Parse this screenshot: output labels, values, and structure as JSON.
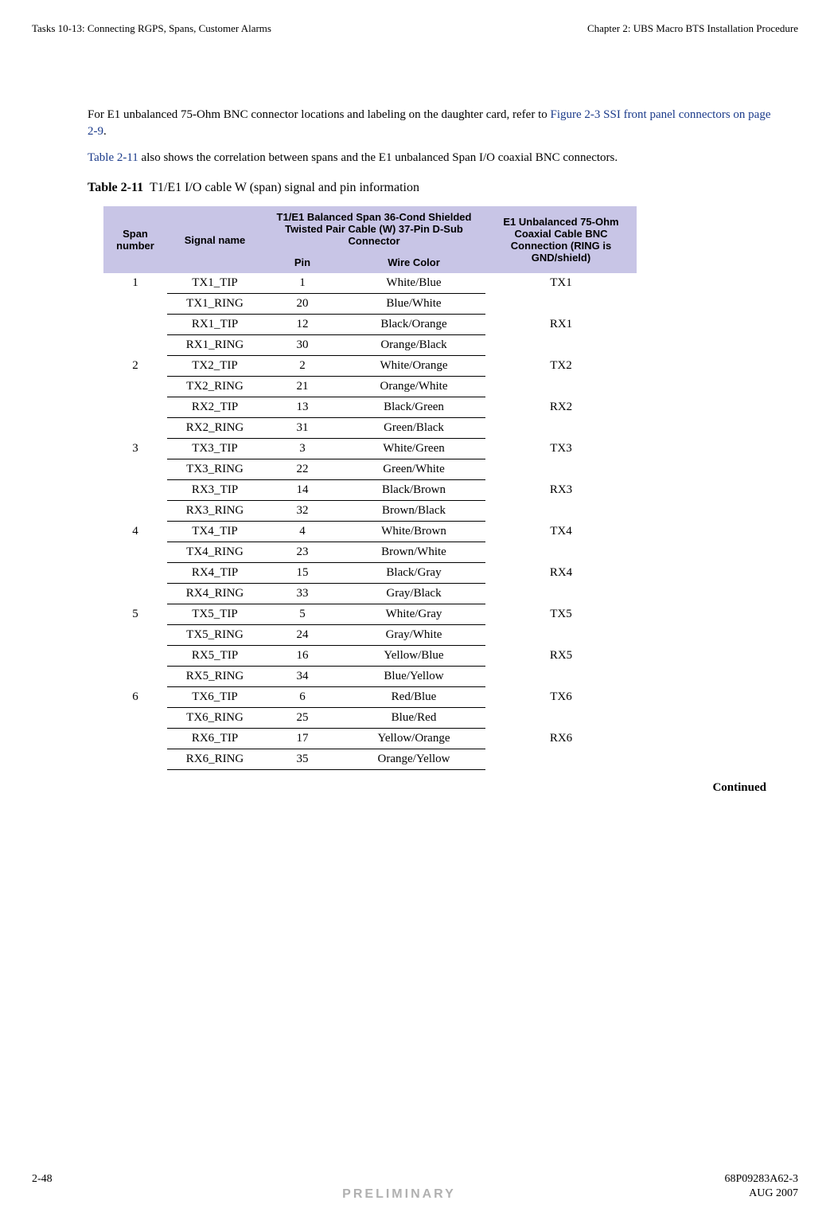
{
  "header": {
    "left": "Tasks 10-13: Connecting RGPS, Spans, Customer Alarms",
    "right": "Chapter 2: UBS Macro BTS Installation Procedure"
  },
  "paragraphs": {
    "p1_a": "For E1 unbalanced 75-Ohm BNC connector locations and labeling on the daughter card, refer to ",
    "p1_link": "Figure 2-3 SSI front panel connectors on page 2-9",
    "p1_c": ".",
    "p2_link": "Table 2-11",
    "p2_b": " also shows the correlation between spans and the E1 unbalanced Span I/O coaxial BNC connectors."
  },
  "table_caption": {
    "label": "Table 2-11",
    "text": "T1/E1 I/O cable W (span) signal and pin information"
  },
  "table_headers": {
    "span": "Span number",
    "signal": "Signal name",
    "balanced": "T1/E1 Balanced Span 36-Cond Shielded Twisted Pair Cable (W) 37-Pin D-Sub Connector",
    "pin": "Pin",
    "wire": "Wire Color",
    "bnc": "E1 Unbalanced 75-Ohm Coaxial Cable BNC Connection (RING is GND/shield)"
  },
  "rows": [
    {
      "span": "1",
      "signal": "TX1_TIP",
      "pin": "1",
      "wire": "White/Blue",
      "bnc": "TX1"
    },
    {
      "span": "",
      "signal": "TX1_RING",
      "pin": "20",
      "wire": "Blue/White",
      "bnc": ""
    },
    {
      "span": "",
      "signal": "RX1_TIP",
      "pin": "12",
      "wire": "Black/Orange",
      "bnc": "RX1"
    },
    {
      "span": "",
      "signal": "RX1_RING",
      "pin": "30",
      "wire": "Orange/Black",
      "bnc": ""
    },
    {
      "span": "2",
      "signal": "TX2_TIP",
      "pin": "2",
      "wire": "White/Orange",
      "bnc": "TX2"
    },
    {
      "span": "",
      "signal": "TX2_RING",
      "pin": "21",
      "wire": "Orange/White",
      "bnc": ""
    },
    {
      "span": "",
      "signal": "RX2_TIP",
      "pin": "13",
      "wire": "Black/Green",
      "bnc": "RX2"
    },
    {
      "span": "",
      "signal": "RX2_RING",
      "pin": "31",
      "wire": "Green/Black",
      "bnc": ""
    },
    {
      "span": "3",
      "signal": "TX3_TIP",
      "pin": "3",
      "wire": "White/Green",
      "bnc": "TX3"
    },
    {
      "span": "",
      "signal": "TX3_RING",
      "pin": "22",
      "wire": "Green/White",
      "bnc": ""
    },
    {
      "span": "",
      "signal": "RX3_TIP",
      "pin": "14",
      "wire": "Black/Brown",
      "bnc": "RX3"
    },
    {
      "span": "",
      "signal": "RX3_RING",
      "pin": "32",
      "wire": "Brown/Black",
      "bnc": ""
    },
    {
      "span": "4",
      "signal": "TX4_TIP",
      "pin": "4",
      "wire": "White/Brown",
      "bnc": "TX4"
    },
    {
      "span": "",
      "signal": "TX4_RING",
      "pin": "23",
      "wire": "Brown/White",
      "bnc": ""
    },
    {
      "span": "",
      "signal": "RX4_TIP",
      "pin": "15",
      "wire": "Black/Gray",
      "bnc": "RX4"
    },
    {
      "span": "",
      "signal": "RX4_RING",
      "pin": "33",
      "wire": "Gray/Black",
      "bnc": ""
    },
    {
      "span": "5",
      "signal": "TX5_TIP",
      "pin": "5",
      "wire": "White/Gray",
      "bnc": "TX5"
    },
    {
      "span": "",
      "signal": "TX5_RING",
      "pin": "24",
      "wire": "Gray/White",
      "bnc": ""
    },
    {
      "span": "",
      "signal": "RX5_TIP",
      "pin": "16",
      "wire": "Yellow/Blue",
      "bnc": "RX5"
    },
    {
      "span": "",
      "signal": "RX5_RING",
      "pin": "34",
      "wire": "Blue/Yellow",
      "bnc": ""
    },
    {
      "span": "6",
      "signal": "TX6_TIP",
      "pin": "6",
      "wire": "Red/Blue",
      "bnc": "TX6"
    },
    {
      "span": "",
      "signal": "TX6_RING",
      "pin": "25",
      "wire": "Blue/Red",
      "bnc": ""
    },
    {
      "span": "",
      "signal": "RX6_TIP",
      "pin": "17",
      "wire": "Yellow/Orange",
      "bnc": "RX6"
    },
    {
      "span": "",
      "signal": "RX6_RING",
      "pin": "35",
      "wire": "Orange/Yellow",
      "bnc": ""
    }
  ],
  "continued": "Continued",
  "footer": {
    "page": "2-48",
    "docnum": "68P09283A62-3",
    "preliminary": "PRELIMINARY",
    "date": "AUG 2007"
  },
  "colors": {
    "header_bg": "#c8c5e6",
    "link": "#1a3a8a",
    "preliminary": "#b0b0b0"
  }
}
